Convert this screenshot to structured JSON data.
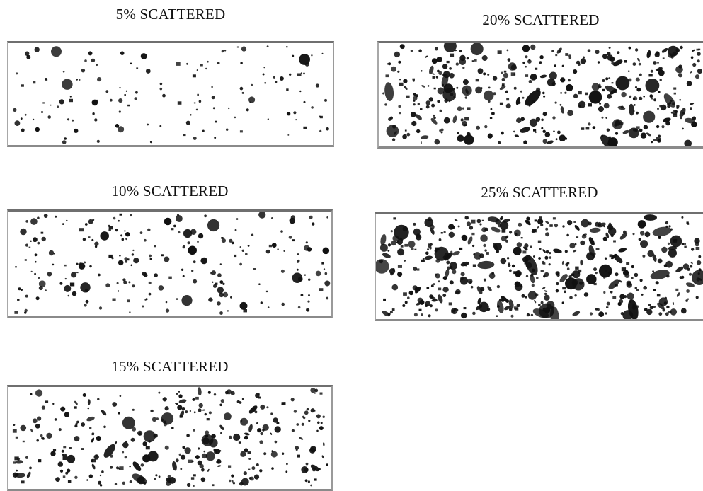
{
  "panels": [
    {
      "id": "p5",
      "title": "5% SCATTERED",
      "percent": 5
    },
    {
      "id": "p20",
      "title": "20% SCATTERED",
      "percent": 20
    },
    {
      "id": "p10",
      "title": "10% SCATTERED",
      "percent": 10
    },
    {
      "id": "p25",
      "title": "25% SCATTERED",
      "percent": 25
    },
    {
      "id": "p15",
      "title": "15% SCATTERED",
      "percent": 15
    }
  ],
  "colors": {
    "dot": "#111111",
    "border": "#7a7a7a",
    "background": "#ffffff"
  }
}
